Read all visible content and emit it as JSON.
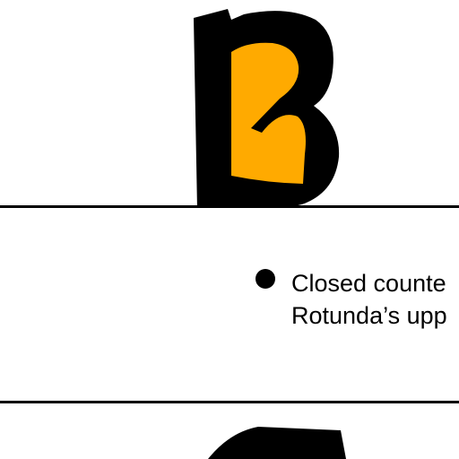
{
  "top_glyph": {
    "letter": "B",
    "fill_color": "#000000",
    "counter_color": "#FFAA00"
  },
  "caption": {
    "line_1": "Closed counte",
    "line_2": "Rotunda’s upp"
  },
  "bottom_glyph": {
    "fill_color": "#000000"
  }
}
